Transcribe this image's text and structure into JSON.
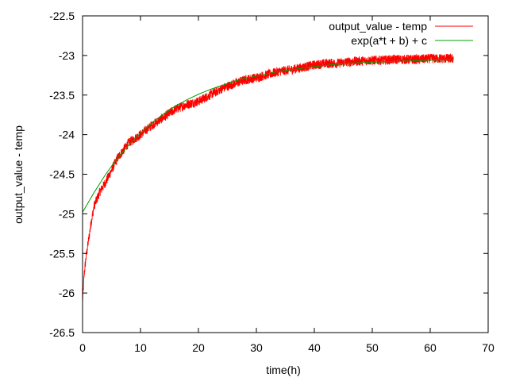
{
  "chart_data": {
    "type": "line",
    "title": "",
    "xlabel": "time(h)",
    "ylabel": "output_value - temp",
    "xlim": [
      0,
      70
    ],
    "ylim": [
      -26.5,
      -22.5
    ],
    "x_ticks": [
      0,
      10,
      20,
      30,
      40,
      50,
      60,
      70
    ],
    "y_ticks": [
      -26.5,
      -26,
      -25.5,
      -25,
      -24.5,
      -24,
      -23.5,
      -23,
      -22.5
    ],
    "x_tick_labels": [
      "0",
      "10",
      "20",
      "30",
      "40",
      "50",
      "60",
      "70"
    ],
    "y_tick_labels": [
      "-26.5",
      "-26",
      "-25.5",
      "-25",
      "-24.5",
      "-24",
      "-23.5",
      "-23",
      "-22.5"
    ],
    "grid": false,
    "legend_position": "top-right",
    "series": [
      {
        "name": "output_value - temp",
        "color": "#ff0000",
        "style": "noisy-line",
        "noise_amplitude": 0.06,
        "x": [
          0,
          0.3,
          0.6,
          1,
          1.5,
          2,
          3,
          4,
          5,
          6,
          7,
          8,
          9,
          10,
          12,
          14,
          16,
          18,
          20,
          22,
          24,
          26,
          28,
          30,
          32,
          34,
          36,
          38,
          40,
          42,
          44,
          46,
          48,
          50,
          52,
          54,
          56,
          58,
          60,
          62,
          64
        ],
        "y": [
          -26.1,
          -25.75,
          -25.55,
          -25.35,
          -25.1,
          -24.9,
          -24.72,
          -24.6,
          -24.45,
          -24.3,
          -24.2,
          -24.1,
          -24.05,
          -24.0,
          -23.88,
          -23.78,
          -23.68,
          -23.62,
          -23.58,
          -23.5,
          -23.42,
          -23.36,
          -23.31,
          -23.28,
          -23.24,
          -23.2,
          -23.18,
          -23.15,
          -23.12,
          -23.1,
          -23.1,
          -23.08,
          -23.07,
          -23.06,
          -23.06,
          -23.05,
          -23.05,
          -23.05,
          -23.04,
          -23.04,
          -23.04
        ]
      },
      {
        "name": "exp(a*t + b) + c",
        "color": "#00a000",
        "style": "line",
        "x": [
          0,
          2,
          4,
          6,
          8,
          10,
          12,
          14,
          16,
          18,
          20,
          22,
          24,
          26,
          28,
          30,
          32,
          34,
          36,
          38,
          40,
          44,
          48,
          52,
          56,
          60,
          64
        ],
        "y": [
          -24.98,
          -24.73,
          -24.5,
          -24.3,
          -24.13,
          -23.98,
          -23.85,
          -23.74,
          -23.64,
          -23.56,
          -23.49,
          -23.43,
          -23.38,
          -23.33,
          -23.29,
          -23.26,
          -23.23,
          -23.2,
          -23.18,
          -23.16,
          -23.14,
          -23.11,
          -23.09,
          -23.08,
          -23.07,
          -23.06,
          -23.05
        ]
      }
    ]
  }
}
